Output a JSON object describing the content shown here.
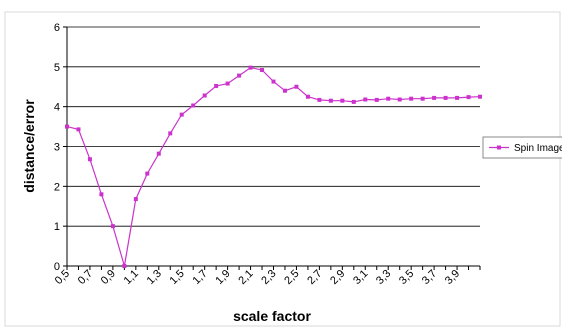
{
  "chart_data": {
    "type": "line",
    "title": "",
    "xlabel": "scale factor",
    "ylabel": "distance/error",
    "xlim": [
      0.5,
      4.1
    ],
    "ylim": [
      0,
      6
    ],
    "y_ticks": [
      0,
      1,
      2,
      3,
      4,
      5,
      6
    ],
    "x_tick_labels": [
      "0,5",
      "0,7",
      "0,9",
      "1,1",
      "1,3",
      "1,5",
      "1,7",
      "1,9",
      "2,1",
      "2,3",
      "2,5",
      "2,7",
      "2,9",
      "3,1",
      "3,3",
      "3,5",
      "3,7",
      "3,9"
    ],
    "x_tick_values": [
      0.5,
      0.7,
      0.9,
      1.1,
      1.3,
      1.5,
      1.7,
      1.9,
      2.1,
      2.3,
      2.5,
      2.7,
      2.9,
      3.1,
      3.3,
      3.5,
      3.7,
      3.9
    ],
    "grid": "horizontal",
    "legend_position": "right",
    "series": [
      {
        "name": "Spin Image",
        "color": "#cc33cc",
        "x": [
          0.5,
          0.6,
          0.7,
          0.8,
          0.9,
          1.0,
          1.1,
          1.2,
          1.3,
          1.4,
          1.5,
          1.6,
          1.7,
          1.8,
          1.9,
          2.0,
          2.1,
          2.2,
          2.3,
          2.4,
          2.5,
          2.6,
          2.7,
          2.8,
          2.9,
          3.0,
          3.1,
          3.2,
          3.3,
          3.4,
          3.5,
          3.6,
          3.7,
          3.8,
          3.9,
          4.0,
          4.1
        ],
        "y": [
          3.5,
          3.43,
          2.68,
          1.8,
          1.0,
          0.0,
          1.68,
          2.32,
          2.82,
          3.33,
          3.8,
          4.03,
          4.28,
          4.52,
          4.58,
          4.78,
          4.98,
          4.92,
          4.63,
          4.4,
          4.5,
          4.25,
          4.17,
          4.15,
          4.15,
          4.12,
          4.18,
          4.17,
          4.2,
          4.18,
          4.2,
          4.2,
          4.22,
          4.22,
          4.22,
          4.24,
          4.25
        ]
      }
    ]
  }
}
